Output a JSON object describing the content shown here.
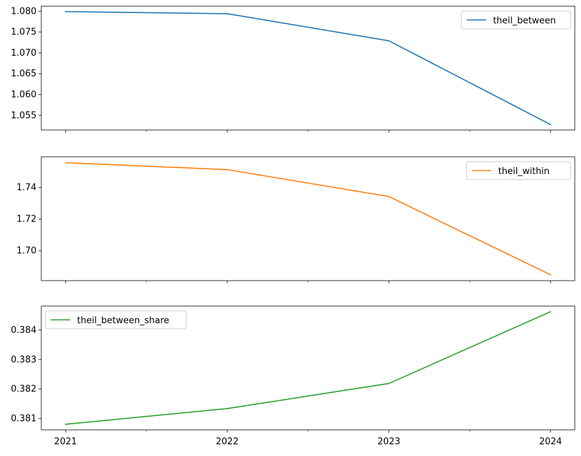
{
  "chart_data": {
    "type": "line",
    "x": [
      "2021",
      "2022",
      "2023",
      "2024"
    ],
    "xticks_minor": true,
    "sharex": true,
    "grid": false,
    "subplots": [
      {
        "series": [
          {
            "name": "theil_between",
            "color": "#1f77b4",
            "values": [
              1.0799,
              1.0794,
              1.0729,
              1.0528
            ]
          }
        ],
        "ylim": [
          1.0515,
          1.0812
        ],
        "yticks": [
          1.055,
          1.06,
          1.065,
          1.07,
          1.075,
          1.08
        ],
        "ytick_labels": [
          "1.055",
          "1.060",
          "1.065",
          "1.070",
          "1.075",
          "1.080"
        ],
        "legend_position": "top-right"
      },
      {
        "series": [
          {
            "name": "theil_within",
            "color": "#ff7f0e",
            "values": [
              1.7557,
              1.7513,
              1.7343,
              1.6849
            ]
          }
        ],
        "ylim": [
          1.6812,
          1.7594
        ],
        "yticks": [
          1.7,
          1.72,
          1.74
        ],
        "ytick_labels": [
          "1.70",
          "1.72",
          "1.74"
        ],
        "legend_position": "top-right"
      },
      {
        "series": [
          {
            "name": "theil_between_share",
            "color": "#2ca02c",
            "values": [
              0.38081,
              0.38134,
              0.38219,
              0.38462
            ]
          }
        ],
        "ylim": [
          0.38062,
          0.38481
        ],
        "yticks": [
          0.381,
          0.382,
          0.383,
          0.384
        ],
        "ytick_labels": [
          "0.381",
          "0.382",
          "0.383",
          "0.384"
        ],
        "legend_position": "top-left"
      }
    ]
  }
}
